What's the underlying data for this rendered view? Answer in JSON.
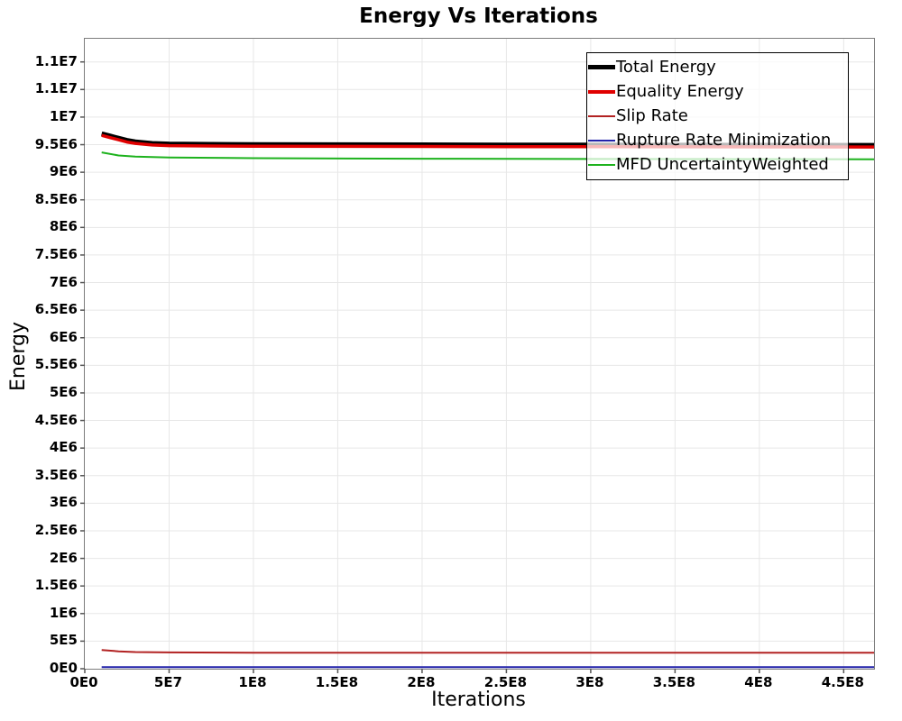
{
  "chart_data": {
    "type": "line",
    "title": "Energy Vs Iterations",
    "xlabel": "Iterations",
    "ylabel": "Energy",
    "xlim": [
      0,
      468000000
    ],
    "ylim": [
      0,
      11420000
    ],
    "grid": true,
    "legend_position": "top-right-inside",
    "colors": {
      "grid": "#e7e7e7",
      "frame": "#7d7d7d",
      "tick": "#555555",
      "legend_border": "#000000"
    },
    "x_ticks": [
      [
        0,
        "0E0"
      ],
      [
        50000000,
        "5E7"
      ],
      [
        100000000,
        "1E8"
      ],
      [
        150000000,
        "1.5E8"
      ],
      [
        200000000,
        "2E8"
      ],
      [
        250000000,
        "2.5E8"
      ],
      [
        300000000,
        "3E8"
      ],
      [
        350000000,
        "3.5E8"
      ],
      [
        400000000,
        "4E8"
      ],
      [
        450000000,
        "4.5E8"
      ]
    ],
    "y_ticks": [
      [
        0,
        "0E0"
      ],
      [
        500000,
        "5E5"
      ],
      [
        1000000,
        "1E6"
      ],
      [
        1500000,
        "1.5E6"
      ],
      [
        2000000,
        "2E6"
      ],
      [
        2500000,
        "2.5E6"
      ],
      [
        3000000,
        "3E6"
      ],
      [
        3500000,
        "3.5E6"
      ],
      [
        4000000,
        "4E6"
      ],
      [
        4500000,
        "4.5E6"
      ],
      [
        5000000,
        "5E6"
      ],
      [
        5500000,
        "5.5E6"
      ],
      [
        6000000,
        "6E6"
      ],
      [
        6500000,
        "6.5E6"
      ],
      [
        7000000,
        "7E6"
      ],
      [
        7500000,
        "7.5E6"
      ],
      [
        8000000,
        "8E6"
      ],
      [
        8500000,
        "8.5E6"
      ],
      [
        9000000,
        "9E6"
      ],
      [
        9500000,
        "9.5E6"
      ],
      [
        10000000,
        "1E7"
      ],
      [
        10500000,
        "1.1E7"
      ],
      [
        11000000,
        "1.1E7"
      ]
    ],
    "series": [
      {
        "name": "Total Energy",
        "color": "#000000",
        "width": 5,
        "points": [
          [
            10000000,
            9700000
          ],
          [
            15000000,
            9660000
          ],
          [
            20000000,
            9620000
          ],
          [
            25000000,
            9580000
          ],
          [
            30000000,
            9555000
          ],
          [
            40000000,
            9525000
          ],
          [
            50000000,
            9515000
          ],
          [
            75000000,
            9508000
          ],
          [
            100000000,
            9505000
          ],
          [
            150000000,
            9502000
          ],
          [
            200000000,
            9500000
          ],
          [
            250000000,
            9497000
          ],
          [
            300000000,
            9495000
          ],
          [
            400000000,
            9492000
          ],
          [
            468000000,
            9490000
          ]
        ]
      },
      {
        "name": "Equality Energy",
        "color": "#e00000",
        "width": 3.5,
        "points": [
          [
            10000000,
            9668000
          ],
          [
            15000000,
            9628000
          ],
          [
            20000000,
            9588000
          ],
          [
            25000000,
            9548000
          ],
          [
            30000000,
            9523000
          ],
          [
            40000000,
            9493000
          ],
          [
            50000000,
            9483000
          ],
          [
            75000000,
            9476000
          ],
          [
            100000000,
            9473000
          ],
          [
            150000000,
            9470000
          ],
          [
            200000000,
            9468000
          ],
          [
            250000000,
            9465000
          ],
          [
            300000000,
            9463000
          ],
          [
            400000000,
            9460000
          ],
          [
            468000000,
            9458000
          ]
        ]
      },
      {
        "name": "Slip Rate",
        "color": "#b22222",
        "width": 2,
        "points": [
          [
            10000000,
            340000
          ],
          [
            20000000,
            315000
          ],
          [
            30000000,
            302000
          ],
          [
            50000000,
            295000
          ],
          [
            100000000,
            291000
          ],
          [
            200000000,
            290000
          ],
          [
            468000000,
            290000
          ]
        ]
      },
      {
        "name": "Rupture Rate Minimization",
        "color": "#2222aa",
        "width": 2,
        "points": [
          [
            10000000,
            30000
          ],
          [
            468000000,
            30000
          ]
        ]
      },
      {
        "name": "MFD UncertaintyWeighted",
        "color": "#1db21d",
        "width": 2,
        "points": [
          [
            10000000,
            9360000
          ],
          [
            20000000,
            9305000
          ],
          [
            30000000,
            9285000
          ],
          [
            50000000,
            9268000
          ],
          [
            100000000,
            9255000
          ],
          [
            200000000,
            9245000
          ],
          [
            300000000,
            9240000
          ],
          [
            468000000,
            9235000
          ]
        ]
      }
    ]
  }
}
